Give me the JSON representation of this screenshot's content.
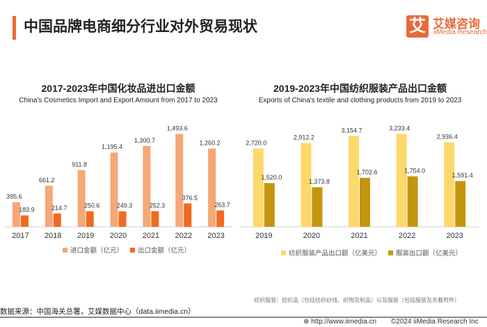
{
  "header": {
    "title": "中国品牌电商细分行业对外贸易现状"
  },
  "logo": {
    "mark": "艾",
    "cn": "艾媒咨询",
    "en": "iiMedia Research"
  },
  "chart_data": [
    {
      "type": "bar",
      "title": "2017-2023年中国化妆品进出口金额",
      "subtitle": "China's Cosmetics Import and Export Amount from 2017 to 2023",
      "categories": [
        "2017",
        "2018",
        "2019",
        "2020",
        "2021",
        "2022",
        "2023"
      ],
      "series": [
        {
          "name": "进口金额（亿元）",
          "color": "#f5a878",
          "values": [
            395.6,
            661.2,
            911.8,
            1195.4,
            1300.7,
            1493.6,
            1260.2
          ]
        },
        {
          "name": "出口金额（亿元）",
          "color": "#f26a1f",
          "values": [
            183.9,
            214.7,
            250.6,
            249.3,
            252.3,
            376.5,
            263.7
          ]
        }
      ],
      "ylim": [
        0,
        1500
      ],
      "legend": "bottom",
      "grid": false
    },
    {
      "type": "bar",
      "title": "2019-2023年中国纺织服装产品出口金额",
      "subtitle": "Exports of China's textile and clothing products from 2019 to 2023",
      "categories": [
        "2019",
        "2020",
        "2021",
        "2022",
        "2023"
      ],
      "series": [
        {
          "name": "纺织服装产品出口额（亿美元）",
          "color": "#fdd86a",
          "values": [
            2720.0,
            2912.2,
            3154.7,
            3233.4,
            2936.4
          ]
        },
        {
          "name": "服装出口额（亿美元）",
          "color": "#c4960e",
          "values": [
            1520.0,
            1373.8,
            1702.6,
            1754.0,
            1591.4
          ]
        }
      ],
      "ylim": [
        0,
        3240
      ],
      "legend": "bottom",
      "grid": false,
      "note": "纺织服装：纺织品（包括纺织纱线、织物及制品）以及服装（包括服装及衣着附件）"
    }
  ],
  "footer": {
    "source": "数据来源：中国海关总署，艾媒数据中心（data.iimedia.cn）",
    "url": "http://www.iimedia.cn",
    "copyright": "©2024  iiMedia Research  Inc"
  }
}
